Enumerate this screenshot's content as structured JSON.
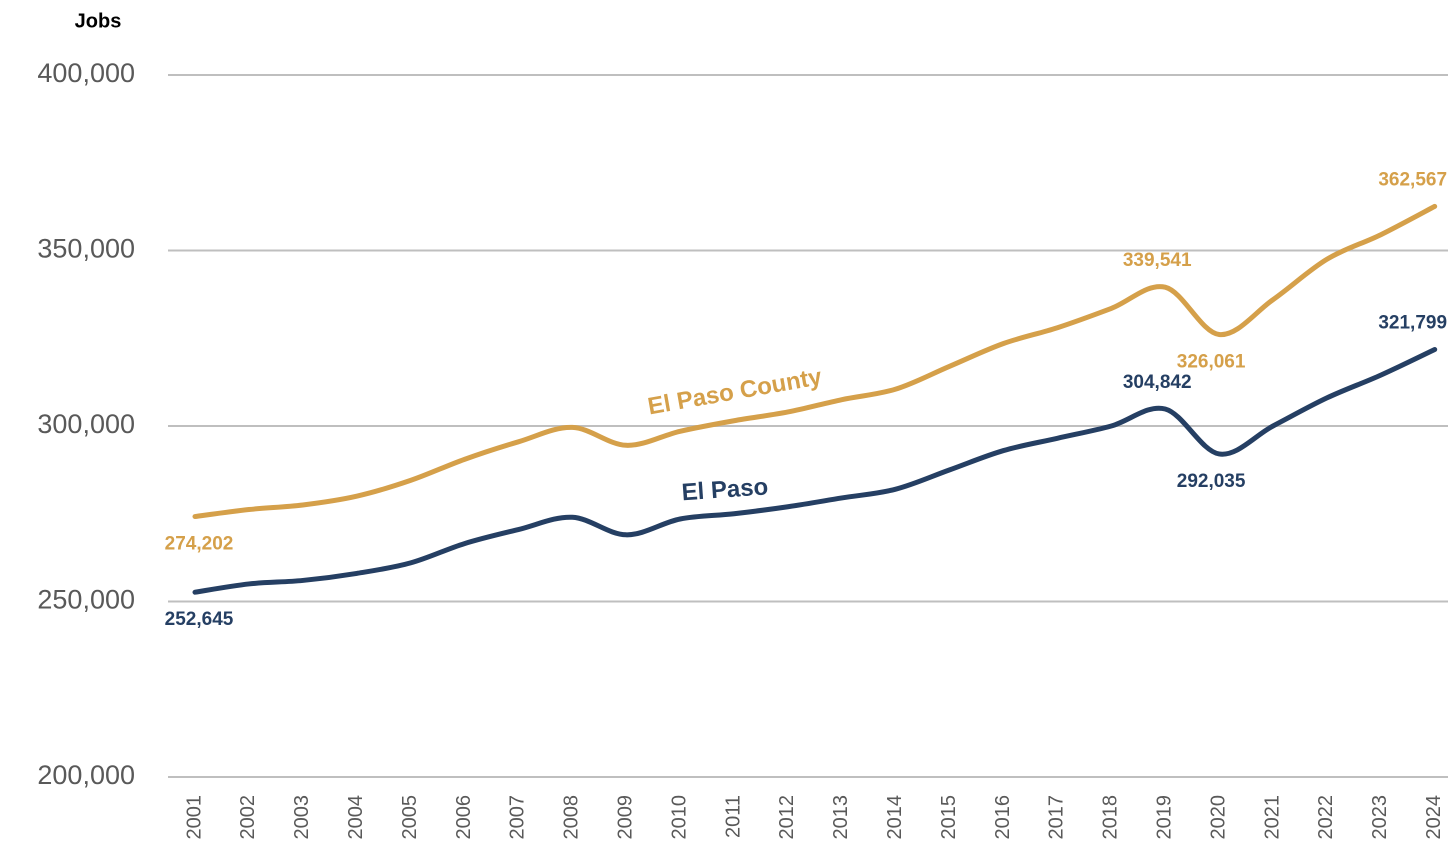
{
  "chart_data": {
    "type": "line",
    "y_axis_label": "Jobs",
    "categories": [
      "2001",
      "2002",
      "2003",
      "2004",
      "2005",
      "2006",
      "2007",
      "2008",
      "2009",
      "2010",
      "2011",
      "2012",
      "2013",
      "2014",
      "2015",
      "2016",
      "2017",
      "2018",
      "2019",
      "2020",
      "2021",
      "2022",
      "2023",
      "2024"
    ],
    "series": [
      {
        "name": "El Paso County",
        "color": "#d5a04a",
        "values": [
          274202,
          276200,
          277500,
          280000,
          284500,
          290500,
          295500,
          299600,
          294500,
          298500,
          301500,
          304000,
          307500,
          310500,
          317000,
          323500,
          328000,
          333500,
          339541,
          326061,
          336000,
          347500,
          354500,
          362567
        ],
        "value_labels": [
          "274,202",
          null,
          null,
          null,
          null,
          null,
          null,
          null,
          null,
          null,
          null,
          null,
          null,
          null,
          null,
          null,
          null,
          null,
          "339,541",
          "326,061",
          null,
          null,
          null,
          "362,567"
        ]
      },
      {
        "name": "El Paso",
        "color": "#253f63",
        "values": [
          252645,
          255000,
          256000,
          258000,
          261000,
          266500,
          270500,
          274000,
          269000,
          273500,
          275000,
          277000,
          279500,
          282000,
          287500,
          293000,
          296500,
          300000,
          304842,
          292035,
          300000,
          308000,
          314500,
          321799
        ],
        "value_labels": [
          "252,645",
          null,
          null,
          null,
          null,
          null,
          null,
          null,
          null,
          null,
          null,
          null,
          null,
          null,
          null,
          null,
          null,
          null,
          "304,842",
          "292,035",
          null,
          null,
          null,
          "321,799"
        ]
      }
    ],
    "ylim": [
      200000,
      400000
    ],
    "yticks": [
      {
        "value": 200000,
        "label": "200,000"
      },
      {
        "value": 250000,
        "label": "250,000"
      },
      {
        "value": 300000,
        "label": "300,000"
      },
      {
        "value": 350000,
        "label": "350,000"
      },
      {
        "value": 400000,
        "label": "400,000"
      }
    ],
    "grid": true
  }
}
